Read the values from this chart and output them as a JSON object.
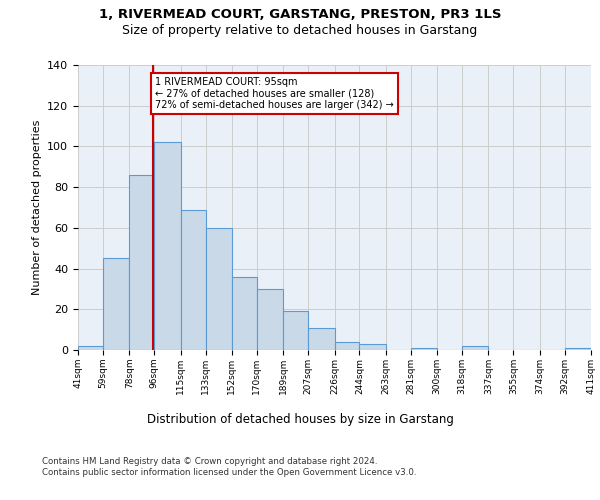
{
  "title_line1": "1, RIVERMEAD COURT, GARSTANG, PRESTON, PR3 1LS",
  "title_line2": "Size of property relative to detached houses in Garstang",
  "xlabel": "Distribution of detached houses by size in Garstang",
  "ylabel": "Number of detached properties",
  "bar_edges": [
    41,
    59,
    78,
    96,
    115,
    133,
    152,
    170,
    189,
    207,
    226,
    244,
    263,
    281,
    300,
    318,
    337,
    355,
    374,
    392,
    411
  ],
  "bar_heights": [
    2,
    45,
    86,
    102,
    69,
    60,
    36,
    30,
    19,
    11,
    4,
    3,
    0,
    1,
    0,
    2,
    0,
    0,
    0,
    1
  ],
  "bar_color": "#c9d9e8",
  "bar_edge_color": "#5b9bd5",
  "grid_color": "#cccccc",
  "bg_color": "#eaf0f8",
  "property_size": 95,
  "property_line_color": "#cc0000",
  "annotation_text": "1 RIVERMEAD COURT: 95sqm\n← 27% of detached houses are smaller (128)\n72% of semi-detached houses are larger (342) →",
  "annotation_box_color": "#ffffff",
  "annotation_box_edge": "#cc0000",
  "footer_text": "Contains HM Land Registry data © Crown copyright and database right 2024.\nContains public sector information licensed under the Open Government Licence v3.0.",
  "ylim": [
    0,
    140
  ],
  "tick_labels": [
    "41sqm",
    "59sqm",
    "78sqm",
    "96sqm",
    "115sqm",
    "133sqm",
    "152sqm",
    "170sqm",
    "189sqm",
    "207sqm",
    "226sqm",
    "244sqm",
    "263sqm",
    "281sqm",
    "300sqm",
    "318sqm",
    "337sqm",
    "355sqm",
    "374sqm",
    "392sqm",
    "411sqm"
  ]
}
